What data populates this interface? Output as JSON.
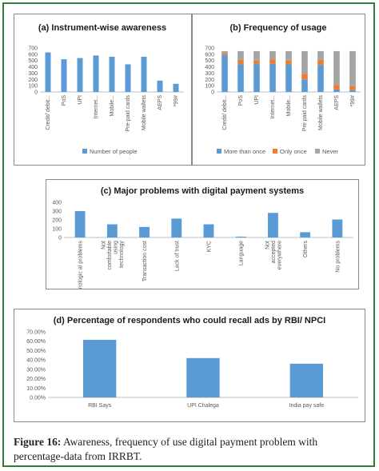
{
  "figure": {
    "caption_label": "Figure 16:",
    "caption_text": "Awareness, frequency of use digital payment problem with percentage-data from IRRBT."
  },
  "colors": {
    "blue": "#5b9bd5",
    "orange": "#ed7d31",
    "gray": "#a5a5a5",
    "axis": "#bfbfbf",
    "text": "#595959"
  },
  "chart_data": [
    {
      "type": "bar",
      "title": "(a) Instrument-wise awareness",
      "categories": [
        "Credit/ debit...",
        "PoS",
        "UPI",
        "Internet...",
        "Mobile...",
        "Pre-paid cards",
        "Mobile wallets",
        "AEPS",
        "*99#"
      ],
      "series": [
        {
          "name": "Number of people",
          "values": [
            630,
            520,
            540,
            580,
            560,
            440,
            560,
            180,
            130
          ]
        }
      ],
      "ylim": [
        0,
        700
      ],
      "yticks": [
        "0",
        "100",
        "200",
        "300",
        "400",
        "500",
        "600",
        "700"
      ],
      "legend": "bottom",
      "grid": false
    },
    {
      "type": "bar",
      "stacked": true,
      "title": "(b) Frequency of usage",
      "categories": [
        "Credit/ debit...",
        "PoS",
        "UPI",
        "Internet...",
        "Mobile...",
        "Pre paid cards",
        "Mobile wallets",
        "AEPS",
        "*99#"
      ],
      "series": [
        {
          "name": "More than once",
          "values": [
            590,
            440,
            440,
            450,
            440,
            200,
            430,
            40,
            30
          ]
        },
        {
          "name": "Only once",
          "values": [
            30,
            70,
            60,
            70,
            60,
            90,
            80,
            70,
            60
          ]
        },
        {
          "name": "Never",
          "values": [
            30,
            140,
            150,
            130,
            150,
            360,
            140,
            540,
            560
          ]
        }
      ],
      "ylim": [
        0,
        700
      ],
      "yticks": [
        "0",
        "100",
        "200",
        "300",
        "400",
        "500",
        "600",
        "700"
      ],
      "legend": "bottom",
      "grid": false
    },
    {
      "type": "bar",
      "title": "(c) Major problems with digital payment systems",
      "categories": [
        "Technologic al problems",
        "Not comfortable using technology",
        "Transaction cost",
        "Lack of trust",
        "KYC",
        "Language",
        "Not accepted everywhere",
        "Others",
        "No problems"
      ],
      "series": [
        {
          "values": [
            300,
            150,
            120,
            215,
            150,
            10,
            280,
            60,
            205
          ]
        }
      ],
      "ylim": [
        0,
        400
      ],
      "yticks": [
        "0",
        "100",
        "200",
        "300",
        "400"
      ],
      "grid": false
    },
    {
      "type": "bar",
      "title": "(d) Percentage of respondents who could recall ads by RBI/ NPCI",
      "categories": [
        "RBI Says",
        "UPI Chalega",
        "India pay safe"
      ],
      "series": [
        {
          "values": [
            61.5,
            42,
            36
          ]
        }
      ],
      "ylim": [
        0,
        70
      ],
      "yticks": [
        "0.00%",
        "10.00%",
        "20.00%",
        "30.00%",
        "40.00%",
        "50.00%",
        "60.00%",
        "70.00%"
      ],
      "grid": false
    }
  ]
}
